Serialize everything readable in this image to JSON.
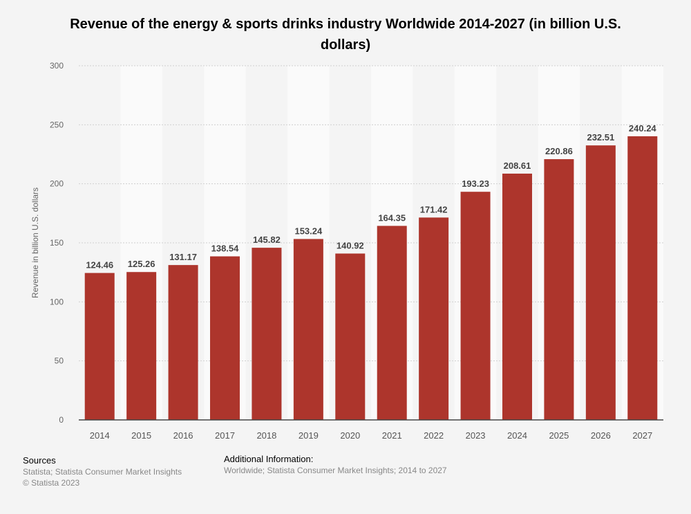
{
  "chart_data": {
    "type": "bar",
    "title": "Revenue of the energy & sports drinks industry Worldwide 2014-2027 (in billion U.S. dollars)",
    "xlabel": "",
    "ylabel": "Revenue in billion U.S. dollars",
    "ylim": [
      0,
      300
    ],
    "yticks": [
      0,
      50,
      100,
      150,
      200,
      250,
      300
    ],
    "grid": true,
    "categories": [
      "2014",
      "2015",
      "2016",
      "2017",
      "2018",
      "2019",
      "2020",
      "2021",
      "2022",
      "2023",
      "2024",
      "2025",
      "2026",
      "2027"
    ],
    "values": [
      124.46,
      125.26,
      131.17,
      138.54,
      145.82,
      153.24,
      140.92,
      164.35,
      171.42,
      193.23,
      208.61,
      220.86,
      232.51,
      240.24
    ],
    "bar_color": "#ad352c"
  },
  "footer": {
    "sources_heading": "Sources",
    "sources_text": "Statista; Statista Consumer Market Insights",
    "copyright": "© Statista 2023",
    "additional_heading": "Additional Information:",
    "additional_text": "Worldwide; Statista Consumer Market Insights; 2014 to 2027"
  }
}
